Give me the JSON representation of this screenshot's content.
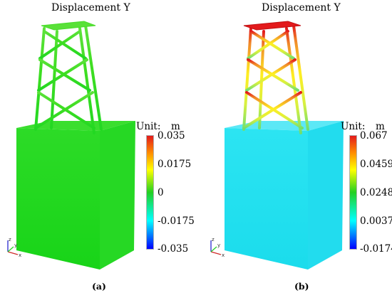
{
  "panels": [
    {
      "title": "Displacement Y",
      "unit_label": "Unit:",
      "unit": "m",
      "colorbar_ticks": [
        "0.035",
        "0.0175",
        "0",
        "-0.0175",
        "-0.035"
      ],
      "caption": "(a)",
      "axis_labels": {
        "z": "z",
        "x": "x",
        "y": "y"
      },
      "colors": {
        "block": "#23d820",
        "tower_base": "#30da20",
        "tower_mid": "#3fde22",
        "tower_top": "#4fe12a"
      }
    },
    {
      "title": "Displacement Y",
      "unit_label": "Unit:",
      "unit": "m",
      "colorbar_ticks": [
        "0.067",
        "0.0459",
        "0.0248",
        "0.0037",
        "-0.0174"
      ],
      "caption": "(b)",
      "axis_labels": {
        "z": "z",
        "x": "x",
        "y": "y"
      },
      "colors": {
        "block": "#1ee0f0",
        "tower_base": "#7fe060",
        "tower_mid": "#f0f020",
        "tower_top": "#e31a1c"
      }
    }
  ],
  "colorbar_colors": [
    "#e31a1c",
    "#ff8c00",
    "#ffff00",
    "#22d022",
    "#00ffff",
    "#0000ff"
  ]
}
